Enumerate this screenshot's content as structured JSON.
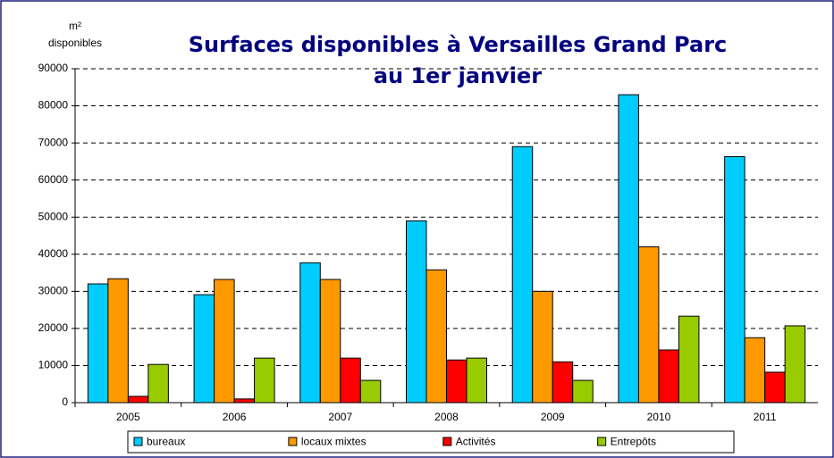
{
  "chart_data": {
    "type": "bar",
    "title_lines": [
      "Surfaces disponibles à Versailles Grand Parc",
      "au 1er janvier"
    ],
    "y_label_lines": [
      "m²",
      "disponibles"
    ],
    "categories": [
      "2005",
      "2006",
      "2007",
      "2008",
      "2009",
      "2010",
      "2011"
    ],
    "series": [
      {
        "name": "bureaux",
        "color": "#00ccff",
        "values": [
          32000,
          29100,
          37700,
          49000,
          69000,
          83000,
          66300
        ]
      },
      {
        "name": "locaux mixtes",
        "color": "#ff9900",
        "values": [
          33400,
          33200,
          33200,
          35800,
          30000,
          42000,
          17500
        ]
      },
      {
        "name": "Activités",
        "color": "#ff0000",
        "values": [
          1700,
          1000,
          12000,
          11500,
          11000,
          14200,
          8200
        ]
      },
      {
        "name": "Entrepôts",
        "color": "#99cc00",
        "values": [
          10300,
          12000,
          6000,
          12000,
          6000,
          23300,
          20700
        ]
      }
    ],
    "ylim": [
      0,
      90000
    ],
    "yticks": [
      0,
      10000,
      20000,
      30000,
      40000,
      50000,
      60000,
      70000,
      80000,
      90000
    ],
    "grid": true,
    "legend": "bottom"
  }
}
